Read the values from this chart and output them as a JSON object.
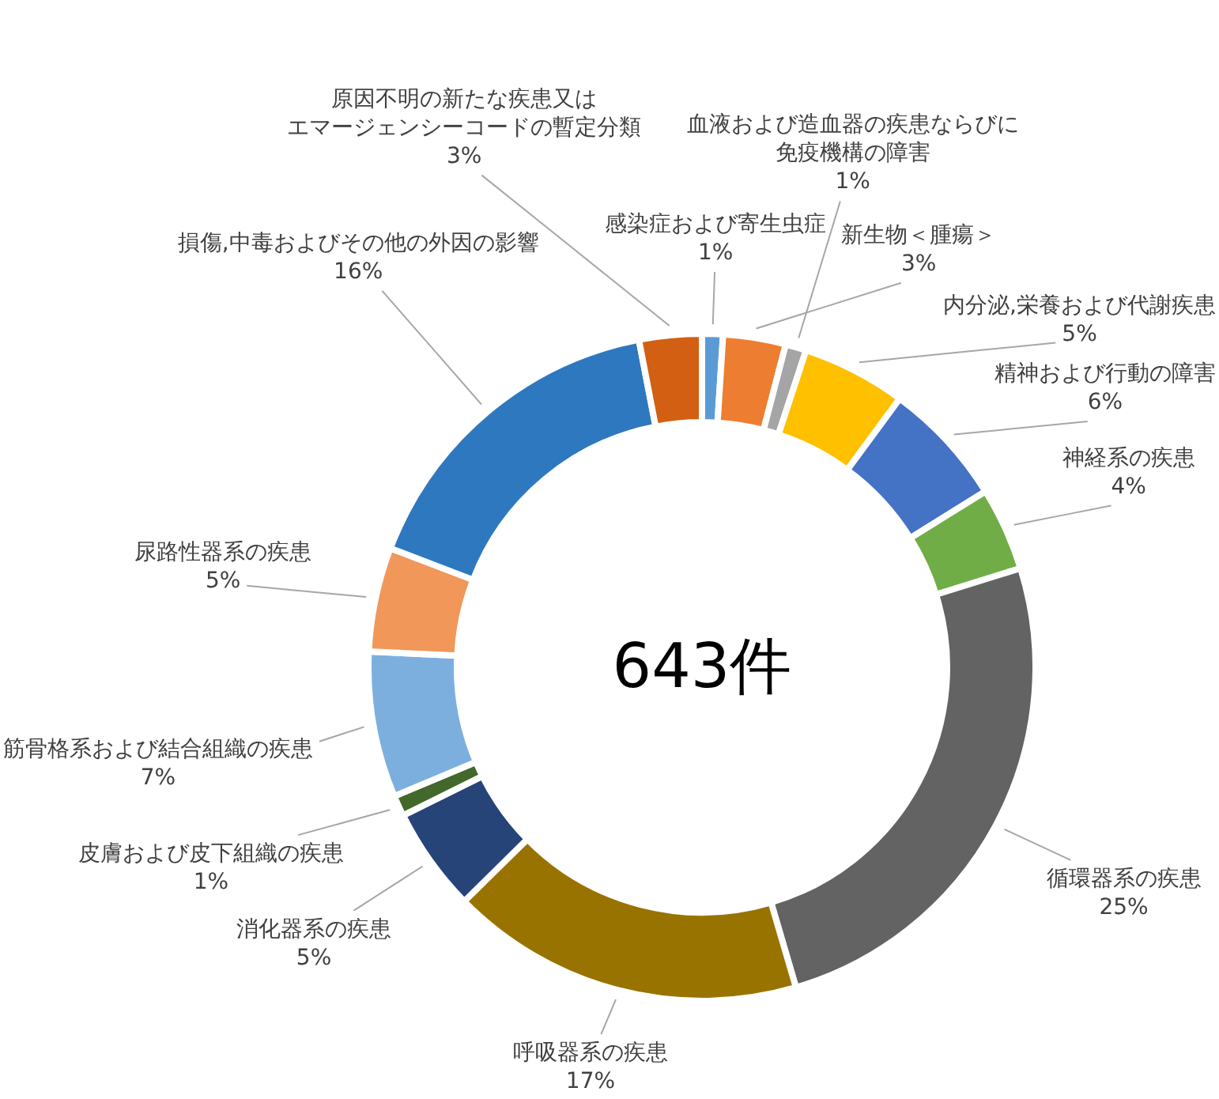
{
  "chart_data": {
    "type": "donut",
    "title": "643件",
    "categories": [
      "感染症および寄生虫症",
      "新生物＜腫瘍＞",
      "血液および造血器の疾患ならびに免疫機構の障害",
      "内分泌,栄養および代謝疾患",
      "精神および行動の障害",
      "神経系の疾患",
      "循環器系の疾患",
      "呼吸器系の疾患",
      "消化器系の疾患",
      "皮膚および皮下組織の疾患",
      "筋骨格系および結合組織の疾患",
      "尿路性器系の疾患",
      "損傷,中毒およびその他の外因の影響",
      "原因不明の新たな疾患又はエマージェンシーコードの暫定分類"
    ],
    "values": [
      1,
      3,
      1,
      5,
      6,
      4,
      25,
      17,
      5,
      1,
      7,
      5,
      16,
      3
    ],
    "value_labels": [
      "1%",
      "3%",
      "1%",
      "5%",
      "6%",
      "4%",
      "25%",
      "17%",
      "5%",
      "1%",
      "7%",
      "5%",
      "16%",
      "3%"
    ],
    "colors": [
      "#5b9bd5",
      "#ed7d31",
      "#a5a5a5",
      "#ffc000",
      "#4472c4",
      "#70ad47",
      "#636363",
      "#997300",
      "#264478",
      "#43682b",
      "#7cafdd",
      "#f1975a",
      "#2e78bf",
      "#d25f12"
    ]
  }
}
